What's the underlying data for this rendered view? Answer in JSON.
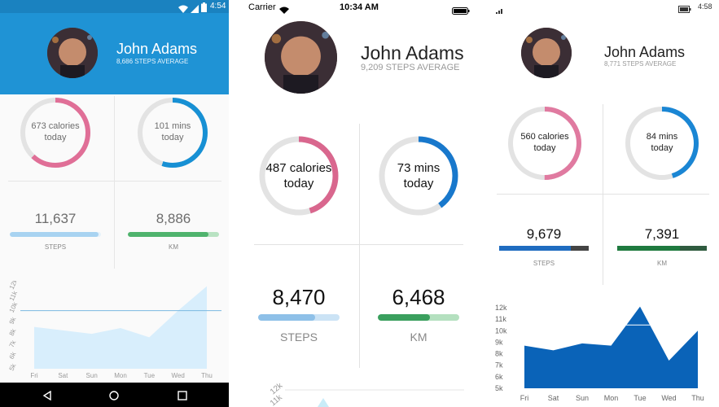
{
  "android": {
    "status_time": "4:54",
    "name": "John Adams",
    "subtitle": "8,686 STEPS AVERAGE",
    "calories_line1": "673 calories",
    "calories_line2": "today",
    "calories_fraction": 0.62,
    "mins_line1": "101 mins",
    "mins_line2": "today",
    "mins_fraction": 0.55,
    "steps_value": "11,637",
    "steps_label": "STEPS",
    "steps_fraction": 0.97,
    "km_value": "8,886",
    "km_label": "KM",
    "km_fraction": 0.88,
    "colors": {
      "header": "#1f93d5",
      "calories": "#e06f97",
      "mins": "#1790d4",
      "steps": "#a8d3f1",
      "km": "#4fb36d",
      "km_track": "#b8e2c2",
      "chart": "#d8eefc",
      "navbar": "#000000"
    }
  },
  "ios": {
    "carrier": "Carrier",
    "status_time": "10:34 AM",
    "name": "John Adams",
    "subtitle": "9,209 STEPS AVERAGE",
    "calories_line1": "487 calories",
    "calories_line2": "today",
    "calories_fraction": 0.45,
    "mins_line1": "73 mins",
    "mins_line2": "today",
    "mins_fraction": 0.4,
    "steps_value": "8,470",
    "steps_label": "STEPS",
    "steps_fraction": 0.7,
    "km_value": "6,468",
    "km_label": "KM",
    "km_fraction": 0.64,
    "colors": {
      "calories": "#d9678e",
      "mins": "#1878cc",
      "steps": "#8ec0e8",
      "steps_track": "#cbe3f5",
      "km": "#3a9f5e",
      "km_track": "#b4e0bf",
      "chart": "#c9ecf8"
    }
  },
  "windows": {
    "status_time": "4:58",
    "name": "John Adams",
    "subtitle": "8,771 STEPS AVERAGE",
    "calories_line1": "560 calories",
    "calories_line2": "today",
    "calories_fraction": 0.5,
    "mins_line1": "84 mins",
    "mins_line2": "today",
    "mins_fraction": 0.45,
    "steps_value": "9,679",
    "steps_label": "STEPS",
    "steps_fraction": 0.8,
    "km_value": "7,391",
    "km_label": "KM",
    "km_fraction": 0.7,
    "colors": {
      "calories": "#e07aa0",
      "mins": "#1a86d4",
      "steps": "#1f6cc0",
      "track": "#444444",
      "km": "#1f7a3f",
      "km_track": "#2f5b3f",
      "chart": "#0a63b8"
    }
  },
  "chart_data": [
    {
      "type": "area",
      "categories": [
        "Fri",
        "Sat",
        "Sun",
        "Mon",
        "Tue",
        "Wed",
        "Thu"
      ],
      "values": [
        8600,
        8300,
        8000,
        8500,
        7700,
        10000,
        12100
      ],
      "y_ticks": [
        "5k",
        "6k",
        "7k",
        "8k",
        "9k",
        "10k",
        "11k",
        "12k"
      ],
      "ylim": [
        5000,
        12000
      ],
      "reference_line": 10000
    },
    {
      "type": "area",
      "y_ticks": [
        "12k",
        "11k"
      ],
      "note": ""
    },
    {
      "type": "area",
      "categories": [
        "Fri",
        "Sat",
        "Sun",
        "Mon",
        "Tue",
        "Wed",
        "Thu"
      ],
      "values": [
        8700,
        8300,
        8900,
        8700,
        12100,
        7400,
        10000
      ],
      "y_ticks": [
        "5k",
        "6k",
        "7k",
        "8k",
        "9k",
        "10k",
        "11k",
        "12k"
      ],
      "ylim": [
        5000,
        12000
      ],
      "reference_line": 10500
    }
  ]
}
